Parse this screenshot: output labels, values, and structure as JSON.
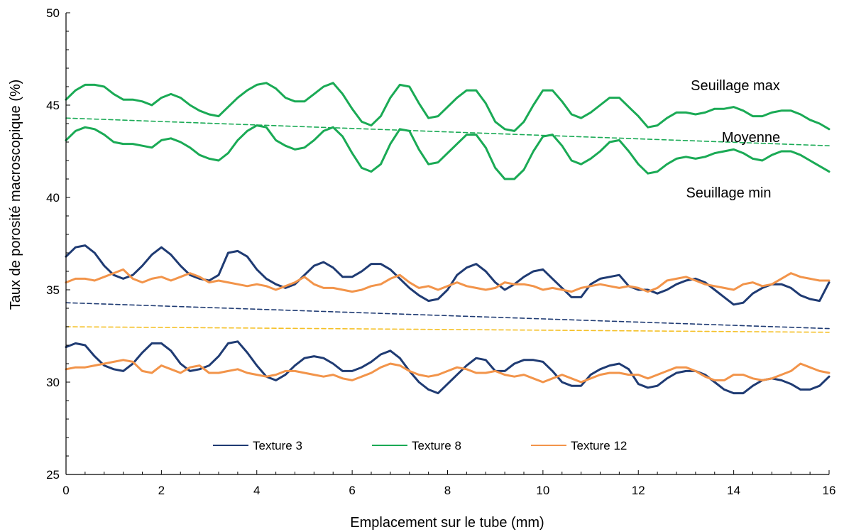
{
  "chart_data": {
    "type": "line",
    "xlabel": "Emplacement sur le tube (mm)",
    "ylabel": "Taux de porosité macroscopique (%)",
    "xlim": [
      0,
      16
    ],
    "ylim": [
      25,
      50
    ],
    "xticks": [
      0,
      2,
      4,
      6,
      8,
      10,
      12,
      14,
      16
    ],
    "yticks": [
      25,
      30,
      35,
      40,
      45,
      50
    ],
    "grid": false,
    "legend_position": "bottom-center",
    "legend": [
      {
        "label": "Texture 3",
        "color": "#1f3b73"
      },
      {
        "label": "Texture 8",
        "color": "#1aaa55"
      },
      {
        "label": "Texture 12",
        "color": "#f2944a"
      }
    ],
    "annotations": [
      {
        "text": "Seuillage max",
        "x": 13.1,
        "y": 45.8
      },
      {
        "text": "Moyenne",
        "x": 13.75,
        "y": 43.0
      },
      {
        "text": "Seuillage min",
        "x": 13.0,
        "y": 40.0
      }
    ],
    "series": [
      {
        "name": "Texture 8",
        "color": "#1aaa55",
        "style": "solid",
        "x": [
          0,
          0.2,
          0.4,
          0.6,
          0.8,
          1.0,
          1.2,
          1.4,
          1.6,
          1.8,
          2.0,
          2.2,
          2.4,
          2.6,
          2.8,
          3.0,
          3.2,
          3.4,
          3.6,
          3.8,
          4.0,
          4.2,
          4.4,
          4.6,
          4.8,
          5.0,
          5.2,
          5.4,
          5.6,
          5.8,
          6.0,
          6.2,
          6.4,
          6.6,
          6.8,
          7.0,
          7.2,
          7.4,
          7.6,
          7.8,
          8.0,
          8.2,
          8.4,
          8.6,
          8.8,
          9.0,
          9.2,
          9.4,
          9.6,
          9.8,
          10.0,
          10.2,
          10.4,
          10.6,
          10.8,
          11.0,
          11.2,
          11.4,
          11.6,
          11.8,
          12.0,
          12.2,
          12.4,
          12.6,
          12.8,
          13.0,
          13.2,
          13.4,
          13.6,
          13.8,
          14.0,
          14.2,
          14.4,
          14.6,
          14.8,
          15.0,
          15.2,
          15.4,
          15.6,
          15.8,
          16.0
        ],
        "y": [
          45.3,
          45.8,
          46.1,
          46.1,
          46.0,
          45.6,
          45.3,
          45.3,
          45.2,
          45.0,
          45.4,
          45.6,
          45.4,
          45.0,
          44.7,
          44.5,
          44.4,
          44.9,
          45.4,
          45.8,
          46.1,
          46.2,
          45.9,
          45.4,
          45.2,
          45.2,
          45.6,
          46.0,
          46.2,
          45.6,
          44.8,
          44.1,
          43.9,
          44.4,
          45.4,
          46.1,
          46.0,
          45.1,
          44.3,
          44.4,
          44.9,
          45.4,
          45.8,
          45.8,
          45.1,
          44.1,
          43.7,
          43.6,
          44.1,
          45.0,
          45.8,
          45.8,
          45.2,
          44.5,
          44.3,
          44.6,
          45.0,
          45.4,
          45.4,
          44.9,
          44.4,
          43.8,
          43.9,
          44.3,
          44.6,
          44.6,
          44.5,
          44.6,
          44.8,
          44.8,
          44.9,
          44.7,
          44.4,
          44.4,
          44.6,
          44.7,
          44.7,
          44.5,
          44.2,
          44.0,
          43.7
        ]
      },
      {
        "name": "Texture 8",
        "color": "#1aaa55",
        "style": "solid",
        "x": [
          0,
          0.2,
          0.4,
          0.6,
          0.8,
          1.0,
          1.2,
          1.4,
          1.6,
          1.8,
          2.0,
          2.2,
          2.4,
          2.6,
          2.8,
          3.0,
          3.2,
          3.4,
          3.6,
          3.8,
          4.0,
          4.2,
          4.4,
          4.6,
          4.8,
          5.0,
          5.2,
          5.4,
          5.6,
          5.8,
          6.0,
          6.2,
          6.4,
          6.6,
          6.8,
          7.0,
          7.2,
          7.4,
          7.6,
          7.8,
          8.0,
          8.2,
          8.4,
          8.6,
          8.8,
          9.0,
          9.2,
          9.4,
          9.6,
          9.8,
          10.0,
          10.2,
          10.4,
          10.6,
          10.8,
          11.0,
          11.2,
          11.4,
          11.6,
          11.8,
          12.0,
          12.2,
          12.4,
          12.6,
          12.8,
          13.0,
          13.2,
          13.4,
          13.6,
          13.8,
          14.0,
          14.2,
          14.4,
          14.6,
          14.8,
          15.0,
          15.2,
          15.4,
          15.6,
          15.8,
          16.0
        ],
        "y": [
          43.1,
          43.6,
          43.8,
          43.7,
          43.4,
          43.0,
          42.9,
          42.9,
          42.8,
          42.7,
          43.1,
          43.2,
          43.0,
          42.7,
          42.3,
          42.1,
          42.0,
          42.4,
          43.1,
          43.6,
          43.9,
          43.8,
          43.1,
          42.8,
          42.6,
          42.7,
          43.1,
          43.6,
          43.8,
          43.3,
          42.4,
          41.6,
          41.4,
          41.8,
          42.9,
          43.7,
          43.6,
          42.6,
          41.8,
          41.9,
          42.4,
          42.9,
          43.4,
          43.4,
          42.7,
          41.6,
          41.0,
          41.0,
          41.5,
          42.5,
          43.3,
          43.4,
          42.8,
          42.0,
          41.8,
          42.1,
          42.5,
          43.0,
          43.1,
          42.5,
          41.8,
          41.3,
          41.4,
          41.8,
          42.1,
          42.2,
          42.1,
          42.2,
          42.4,
          42.5,
          42.6,
          42.4,
          42.1,
          42.0,
          42.3,
          42.5,
          42.5,
          42.3,
          42.0,
          41.7,
          41.4
        ]
      },
      {
        "name": "Texture 3",
        "color": "#1f3b73",
        "style": "solid",
        "x": [
          0,
          0.2,
          0.4,
          0.6,
          0.8,
          1.0,
          1.2,
          1.4,
          1.6,
          1.8,
          2.0,
          2.2,
          2.4,
          2.6,
          2.8,
          3.0,
          3.2,
          3.4,
          3.6,
          3.8,
          4.0,
          4.2,
          4.4,
          4.6,
          4.8,
          5.0,
          5.2,
          5.4,
          5.6,
          5.8,
          6.0,
          6.2,
          6.4,
          6.6,
          6.8,
          7.0,
          7.2,
          7.4,
          7.6,
          7.8,
          8.0,
          8.2,
          8.4,
          8.6,
          8.8,
          9.0,
          9.2,
          9.4,
          9.6,
          9.8,
          10.0,
          10.2,
          10.4,
          10.6,
          10.8,
          11.0,
          11.2,
          11.4,
          11.6,
          11.8,
          12.0,
          12.2,
          12.4,
          12.6,
          12.8,
          13.0,
          13.2,
          13.4,
          13.6,
          13.8,
          14.0,
          14.2,
          14.4,
          14.6,
          14.8,
          15.0,
          15.2,
          15.4,
          15.6,
          15.8,
          16.0
        ],
        "y": [
          36.8,
          37.3,
          37.4,
          37.0,
          36.3,
          35.8,
          35.6,
          35.8,
          36.3,
          36.9,
          37.3,
          36.9,
          36.3,
          35.8,
          35.6,
          35.5,
          35.8,
          37.0,
          37.1,
          36.8,
          36.1,
          35.6,
          35.3,
          35.1,
          35.3,
          35.8,
          36.3,
          36.5,
          36.2,
          35.7,
          35.7,
          36.0,
          36.4,
          36.4,
          36.1,
          35.6,
          35.1,
          34.7,
          34.4,
          34.5,
          35.0,
          35.8,
          36.2,
          36.4,
          36.0,
          35.4,
          35.0,
          35.3,
          35.7,
          36.0,
          36.1,
          35.6,
          35.1,
          34.6,
          34.6,
          35.3,
          35.6,
          35.7,
          35.8,
          35.2,
          35.0,
          35.0,
          34.8,
          35.0,
          35.3,
          35.5,
          35.6,
          35.4,
          35.0,
          34.6,
          34.2,
          34.3,
          34.8,
          35.1,
          35.3,
          35.3,
          35.1,
          34.7,
          34.5,
          34.4,
          35.4
        ]
      },
      {
        "name": "Texture 3",
        "color": "#1f3b73",
        "style": "solid",
        "x": [
          0,
          0.2,
          0.4,
          0.6,
          0.8,
          1.0,
          1.2,
          1.4,
          1.6,
          1.8,
          2.0,
          2.2,
          2.4,
          2.6,
          2.8,
          3.0,
          3.2,
          3.4,
          3.6,
          3.8,
          4.0,
          4.2,
          4.4,
          4.6,
          4.8,
          5.0,
          5.2,
          5.4,
          5.6,
          5.8,
          6.0,
          6.2,
          6.4,
          6.6,
          6.8,
          7.0,
          7.2,
          7.4,
          7.6,
          7.8,
          8.0,
          8.2,
          8.4,
          8.6,
          8.8,
          9.0,
          9.2,
          9.4,
          9.6,
          9.8,
          10.0,
          10.2,
          10.4,
          10.6,
          10.8,
          11.0,
          11.2,
          11.4,
          11.6,
          11.8,
          12.0,
          12.2,
          12.4,
          12.6,
          12.8,
          13.0,
          13.2,
          13.4,
          13.6,
          13.8,
          14.0,
          14.2,
          14.4,
          14.6,
          14.8,
          15.0,
          15.2,
          15.4,
          15.6,
          15.8,
          16.0
        ],
        "y": [
          31.9,
          32.1,
          32.0,
          31.4,
          30.9,
          30.7,
          30.6,
          31.0,
          31.6,
          32.1,
          32.1,
          31.7,
          31.0,
          30.6,
          30.7,
          30.9,
          31.4,
          32.1,
          32.2,
          31.6,
          30.9,
          30.3,
          30.1,
          30.4,
          30.9,
          31.3,
          31.4,
          31.3,
          31.0,
          30.6,
          30.6,
          30.8,
          31.1,
          31.5,
          31.7,
          31.3,
          30.6,
          30.0,
          29.6,
          29.4,
          29.9,
          30.4,
          30.9,
          31.3,
          31.2,
          30.6,
          30.6,
          31.0,
          31.2,
          31.2,
          31.1,
          30.6,
          30.0,
          29.8,
          29.8,
          30.4,
          30.7,
          30.9,
          31.0,
          30.7,
          29.9,
          29.7,
          29.8,
          30.2,
          30.5,
          30.6,
          30.6,
          30.4,
          30.0,
          29.6,
          29.4,
          29.4,
          29.8,
          30.1,
          30.2,
          30.1,
          29.9,
          29.6,
          29.6,
          29.8,
          30.3
        ]
      },
      {
        "name": "Texture 12",
        "color": "#f2944a",
        "style": "solid",
        "x": [
          0,
          0.2,
          0.4,
          0.6,
          0.8,
          1.0,
          1.2,
          1.4,
          1.6,
          1.8,
          2.0,
          2.2,
          2.4,
          2.6,
          2.8,
          3.0,
          3.2,
          3.4,
          3.6,
          3.8,
          4.0,
          4.2,
          4.4,
          4.6,
          4.8,
          5.0,
          5.2,
          5.4,
          5.6,
          5.8,
          6.0,
          6.2,
          6.4,
          6.6,
          6.8,
          7.0,
          7.2,
          7.4,
          7.6,
          7.8,
          8.0,
          8.2,
          8.4,
          8.6,
          8.8,
          9.0,
          9.2,
          9.4,
          9.6,
          9.8,
          10.0,
          10.2,
          10.4,
          10.6,
          10.8,
          11.0,
          11.2,
          11.4,
          11.6,
          11.8,
          12.0,
          12.2,
          12.4,
          12.6,
          12.8,
          13.0,
          13.2,
          13.4,
          13.6,
          13.8,
          14.0,
          14.2,
          14.4,
          14.6,
          14.8,
          15.0,
          15.2,
          15.4,
          15.6,
          15.8,
          16.0
        ],
        "y": [
          35.4,
          35.6,
          35.6,
          35.5,
          35.7,
          35.9,
          36.1,
          35.6,
          35.4,
          35.6,
          35.7,
          35.5,
          35.7,
          35.9,
          35.7,
          35.4,
          35.5,
          35.4,
          35.3,
          35.2,
          35.3,
          35.2,
          35.0,
          35.2,
          35.4,
          35.7,
          35.3,
          35.1,
          35.1,
          35.0,
          34.9,
          35.0,
          35.2,
          35.3,
          35.6,
          35.8,
          35.4,
          35.1,
          35.2,
          35.0,
          35.2,
          35.4,
          35.2,
          35.1,
          35.0,
          35.1,
          35.4,
          35.3,
          35.3,
          35.2,
          35.0,
          35.1,
          35.0,
          34.9,
          35.1,
          35.2,
          35.3,
          35.2,
          35.1,
          35.2,
          35.1,
          34.9,
          35.1,
          35.5,
          35.6,
          35.7,
          35.5,
          35.3,
          35.2,
          35.1,
          35.0,
          35.3,
          35.4,
          35.2,
          35.3,
          35.6,
          35.9,
          35.7,
          35.6,
          35.5,
          35.5
        ]
      },
      {
        "name": "Texture 12",
        "color": "#f2944a",
        "style": "solid",
        "x": [
          0,
          0.2,
          0.4,
          0.6,
          0.8,
          1.0,
          1.2,
          1.4,
          1.6,
          1.8,
          2.0,
          2.2,
          2.4,
          2.6,
          2.8,
          3.0,
          3.2,
          3.4,
          3.6,
          3.8,
          4.0,
          4.2,
          4.4,
          4.6,
          4.8,
          5.0,
          5.2,
          5.4,
          5.6,
          5.8,
          6.0,
          6.2,
          6.4,
          6.6,
          6.8,
          7.0,
          7.2,
          7.4,
          7.6,
          7.8,
          8.0,
          8.2,
          8.4,
          8.6,
          8.8,
          9.0,
          9.2,
          9.4,
          9.6,
          9.8,
          10.0,
          10.2,
          10.4,
          10.6,
          10.8,
          11.0,
          11.2,
          11.4,
          11.6,
          11.8,
          12.0,
          12.2,
          12.4,
          12.6,
          12.8,
          13.0,
          13.2,
          13.4,
          13.6,
          13.8,
          14.0,
          14.2,
          14.4,
          14.6,
          14.8,
          15.0,
          15.2,
          15.4,
          15.6,
          15.8,
          16.0
        ],
        "y": [
          30.7,
          30.8,
          30.8,
          30.9,
          31.0,
          31.1,
          31.2,
          31.1,
          30.6,
          30.5,
          30.9,
          30.7,
          30.5,
          30.8,
          30.9,
          30.5,
          30.5,
          30.6,
          30.7,
          30.5,
          30.4,
          30.3,
          30.4,
          30.6,
          30.6,
          30.5,
          30.4,
          30.3,
          30.4,
          30.2,
          30.1,
          30.3,
          30.5,
          30.8,
          31.0,
          30.9,
          30.6,
          30.4,
          30.3,
          30.4,
          30.6,
          30.8,
          30.7,
          30.5,
          30.5,
          30.6,
          30.4,
          30.3,
          30.4,
          30.2,
          30.0,
          30.2,
          30.4,
          30.2,
          30.0,
          30.2,
          30.4,
          30.5,
          30.5,
          30.4,
          30.4,
          30.2,
          30.4,
          30.6,
          30.8,
          30.8,
          30.6,
          30.3,
          30.1,
          30.1,
          30.4,
          30.4,
          30.2,
          30.1,
          30.2,
          30.4,
          30.6,
          31.0,
          30.8,
          30.6,
          30.5
        ]
      },
      {
        "name": "Moyenne",
        "color": "#1aaa55",
        "style": "dashed",
        "x": [
          0,
          16
        ],
        "y": [
          44.3,
          42.8
        ]
      },
      {
        "name": "",
        "color": "#1f3b73",
        "style": "dashed",
        "x": [
          0,
          16
        ],
        "y": [
          34.3,
          32.9
        ]
      },
      {
        "name": "",
        "color": "#f5c026",
        "style": "dashed",
        "x": [
          0,
          16
        ],
        "y": [
          33.0,
          32.7
        ]
      }
    ]
  }
}
